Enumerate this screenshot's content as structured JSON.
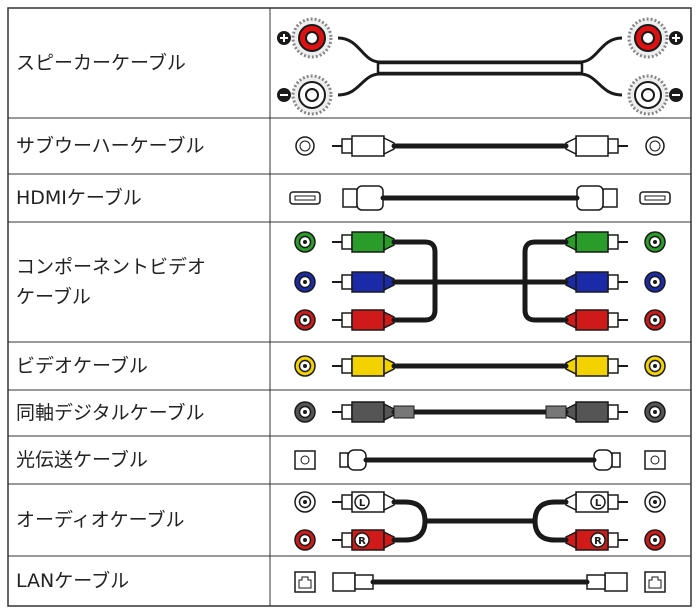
{
  "cables": [
    {
      "label": "スピーカーケーブル"
    },
    {
      "label": "サブウーハーケーブル"
    },
    {
      "label": "HDMIケーブル"
    },
    {
      "label": "コンポーネントビデオケーブル"
    },
    {
      "label": "ビデオケーブル"
    },
    {
      "label": "同軸デジタルケーブル"
    },
    {
      "label": "光伝送ケーブル"
    },
    {
      "label": "オーディオケーブル",
      "markers": [
        "L",
        "R"
      ]
    },
    {
      "label": "LANケーブル"
    }
  ]
}
